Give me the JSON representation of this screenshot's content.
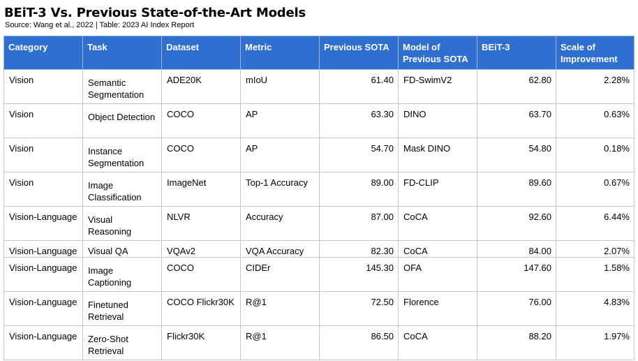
{
  "title": "BEiT-3 Vs. Previous State-of-the-Art Models",
  "subtitle": "Source: Wang et al., 2022 | Table: 2023 AI Index Report",
  "table": {
    "header_color": "#2f6fd0",
    "columns": [
      "Category",
      "Task",
      "Dataset",
      "Metric",
      "Previous SOTA",
      "Model of Previous SOTA",
      "BEiT-3",
      "Scale of Improvement"
    ],
    "rows": [
      {
        "category": "Vision",
        "task": "Semantic Segmentation",
        "dataset": "ADE20K",
        "metric": "mIoU",
        "previous_sota": "61.40",
        "model": "FD-SwimV2",
        "beit3": "62.80",
        "improvement": "2.28%"
      },
      {
        "category": "Vision",
        "task": "Object Detection",
        "dataset": "COCO",
        "metric": "AP",
        "previous_sota": "63.30",
        "model": "DINO",
        "beit3": "63.70",
        "improvement": "0.63%"
      },
      {
        "category": "Vision",
        "task": "Instance Segmentation",
        "dataset": "COCO",
        "metric": "AP",
        "previous_sota": "54.70",
        "model": "Mask DINO",
        "beit3": "54.80",
        "improvement": "0.18%"
      },
      {
        "category": "Vision",
        "task": "Image Classification",
        "dataset": "ImageNet",
        "metric": "Top-1 Accuracy",
        "previous_sota": "89.00",
        "model": "FD-CLIP",
        "beit3": "89.60",
        "improvement": "0.67%"
      },
      {
        "category": "Vision-Language",
        "task": "Visual Reasoning",
        "dataset": "NLVR",
        "metric": "Accuracy",
        "previous_sota": "87.00",
        "model": "CoCA",
        "beit3": "92.60",
        "improvement": "6.44%"
      },
      {
        "category": "Vision-Language",
        "task": "Visual QA",
        "dataset": "VQAv2",
        "metric": "VQA Accuracy",
        "previous_sota": "82.30",
        "model": "CoCA",
        "beit3": "84.00",
        "improvement": "2.07%"
      },
      {
        "category": "Vision-Language",
        "task": "Image Captioning",
        "dataset": "COCO",
        "metric": "CIDEr",
        "previous_sota": "145.30",
        "model": "OFA",
        "beit3": "147.60",
        "improvement": "1.58%"
      },
      {
        "category": "Vision-Language",
        "task": "Finetuned Retrieval",
        "dataset": "COCO Flickr30K",
        "metric": "R@1",
        "previous_sota": "72.50",
        "model": "Florence",
        "beit3": "76.00",
        "improvement": "4.83%"
      },
      {
        "category": "Vision-Language",
        "task": "Zero-Shot Retrieval",
        "dataset": "Flickr30K",
        "metric": "R@1",
        "previous_sota": "86.50",
        "model": "CoCA",
        "beit3": "88.20",
        "improvement": "1.97%"
      }
    ]
  }
}
